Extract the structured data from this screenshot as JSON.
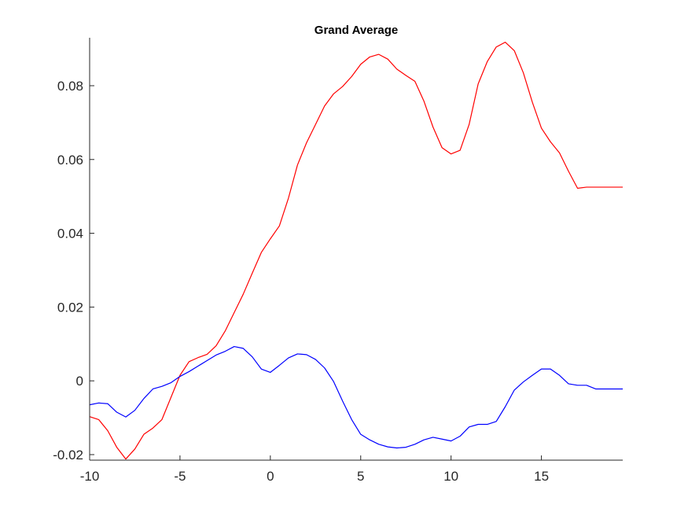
{
  "chart_data": {
    "type": "line",
    "title": "Grand Average",
    "xlabel": "",
    "ylabel": "",
    "xlim": [
      -10,
      19.5
    ],
    "ylim": [
      -0.0215,
      0.093
    ],
    "xticks": [
      -10,
      -5,
      0,
      5,
      10,
      15
    ],
    "xtick_labels": [
      "-10",
      "-5",
      "0",
      "5",
      "10",
      "15"
    ],
    "yticks": [
      -0.02,
      0,
      0.02,
      0.04,
      0.06,
      0.08
    ],
    "ytick_labels": [
      "-0.02",
      "0",
      "0.02",
      "0.04",
      "0.06",
      "0.08"
    ],
    "grid": false,
    "series": [
      {
        "color": "#ff0000",
        "x": [
          -10,
          -9.5,
          -9,
          -8.5,
          -8,
          -7.5,
          -7,
          -6.5,
          -6,
          -5.5,
          -5,
          -4.5,
          -4,
          -3.5,
          -3,
          -2.5,
          -2,
          -1.5,
          -1,
          -0.5,
          0,
          0.5,
          1,
          1.5,
          2,
          2.5,
          3,
          3.5,
          4,
          4.5,
          5,
          5.5,
          6,
          6.5,
          7,
          7.5,
          8,
          8.5,
          9,
          9.5,
          10,
          10.5,
          11,
          11.5,
          12,
          12.5,
          13,
          13.5,
          14,
          14.5,
          15,
          15.5,
          16,
          16.5,
          17,
          17.5,
          18,
          18.5,
          19,
          19.5
        ],
        "y": [
          -0.0097,
          -0.0105,
          -0.0135,
          -0.018,
          -0.0212,
          -0.0185,
          -0.0145,
          -0.0128,
          -0.0105,
          -0.0045,
          0.0015,
          0.0052,
          0.0063,
          0.0072,
          0.0095,
          0.0135,
          0.0185,
          0.0235,
          0.0292,
          0.0348,
          0.0385,
          0.042,
          0.0495,
          0.0585,
          0.0645,
          0.0695,
          0.0745,
          0.0778,
          0.0798,
          0.0825,
          0.0858,
          0.0878,
          0.0885,
          0.0872,
          0.0845,
          0.0828,
          0.0812,
          0.0758,
          0.0688,
          0.0632,
          0.0615,
          0.0625,
          0.0695,
          0.0805,
          0.0865,
          0.0905,
          0.0918,
          0.0895,
          0.0835,
          0.0755,
          0.0685,
          0.0648,
          0.0618,
          0.0568,
          0.0522,
          0.0525,
          0.0525,
          0.0525,
          0.0525,
          0.0525
        ]
      },
      {
        "color": "#0000ff",
        "x": [
          -10,
          -9.5,
          -9,
          -8.5,
          -8,
          -7.5,
          -7,
          -6.5,
          -6,
          -5.5,
          -5,
          -4.5,
          -4,
          -3.5,
          -3,
          -2.5,
          -2,
          -1.5,
          -1,
          -0.5,
          0,
          0.5,
          1,
          1.5,
          2,
          2.5,
          3,
          3.5,
          4,
          4.5,
          5,
          5.5,
          6,
          6.5,
          7,
          7.5,
          8,
          8.5,
          9,
          9.5,
          10,
          10.5,
          11,
          11.5,
          12,
          12.5,
          13,
          13.5,
          14,
          14.5,
          15,
          15.5,
          16,
          16.5,
          17,
          17.5,
          18,
          18.5,
          19,
          19.5
        ],
        "y": [
          -0.0065,
          -0.006,
          -0.0062,
          -0.0085,
          -0.0098,
          -0.008,
          -0.0048,
          -0.0022,
          -0.0015,
          -0.0005,
          0.0012,
          0.0025,
          0.004,
          0.0055,
          0.007,
          0.008,
          0.0093,
          0.0088,
          0.0065,
          0.0032,
          0.0023,
          0.0042,
          0.0062,
          0.0073,
          0.0071,
          0.0058,
          0.0035,
          -0.0002,
          -0.0055,
          -0.0105,
          -0.0145,
          -0.016,
          -0.0172,
          -0.0179,
          -0.0182,
          -0.018,
          -0.0172,
          -0.016,
          -0.0153,
          -0.0158,
          -0.0163,
          -0.015,
          -0.0125,
          -0.0118,
          -0.0118,
          -0.011,
          -0.007,
          -0.0025,
          -0.0003,
          0.0015,
          0.0032,
          0.0032,
          0.0015,
          -0.0008,
          -0.0012,
          -0.0012,
          -0.0022,
          -0.0022,
          -0.0022,
          -0.0022
        ]
      }
    ]
  }
}
